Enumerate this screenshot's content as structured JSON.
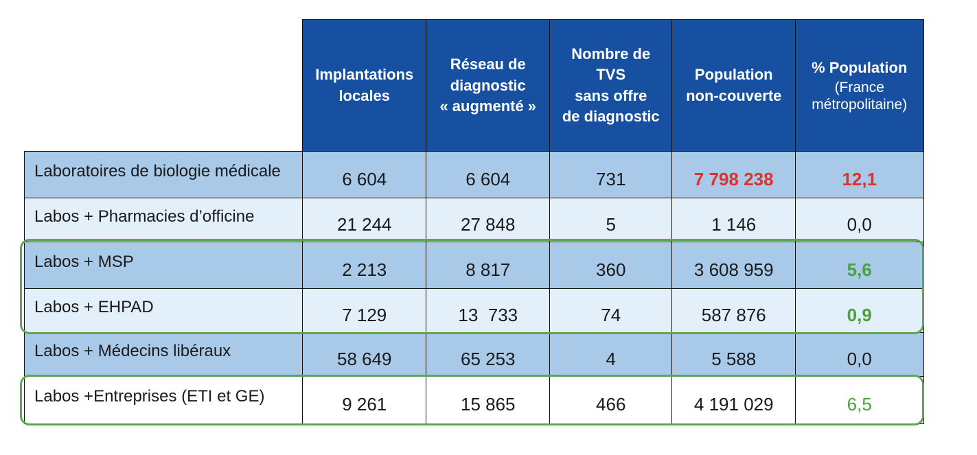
{
  "table": {
    "headers": [
      {
        "lines": [
          "Implantations",
          "locales"
        ],
        "sub": []
      },
      {
        "lines": [
          "Réseau de",
          "diagnostic",
          "« augmenté »"
        ],
        "sub": []
      },
      {
        "lines": [
          "Nombre de",
          "TVS",
          "sans offre",
          "de diagnostic"
        ],
        "sub": []
      },
      {
        "lines": [
          "Population",
          "non-couverte"
        ],
        "sub": []
      },
      {
        "lines": [
          "% Population"
        ],
        "sub": [
          "(France",
          "métropolitaine)"
        ]
      }
    ],
    "rows": [
      {
        "label": "Laboratoires de biologie médicale",
        "values": [
          "6 604",
          "6 604",
          "731",
          "7 798 238",
          "12,1"
        ]
      },
      {
        "label": "Labos + Pharmacies d’officine",
        "values": [
          "21 244",
          "27 848",
          "5",
          "1 146",
          "0,0"
        ]
      },
      {
        "label": "Labos + MSP",
        "values": [
          "2 213",
          "8 817",
          "360",
          "3 608 959",
          "5,6"
        ]
      },
      {
        "label": "Labos + EHPAD",
        "values": [
          "7 129",
          "13  733",
          "74",
          "587 876",
          "0,9"
        ]
      },
      {
        "label": "Labos + Médecins libéraux",
        "values": [
          "58 649",
          "65 253",
          "4",
          "5 588",
          "0,0"
        ]
      },
      {
        "label": "Labos +Entreprises (ETI et GE)",
        "values": [
          "9 261",
          "15 865",
          "466",
          "4 191 029",
          "6,5"
        ]
      }
    ]
  },
  "colors": {
    "header_bg": "#1750a0",
    "row_dark": "#a9c9e9",
    "row_light": "#e3eff9",
    "highlight_red": "#e0312f",
    "highlight_green": "#4aa13e",
    "frame_green": "#5fa552"
  }
}
